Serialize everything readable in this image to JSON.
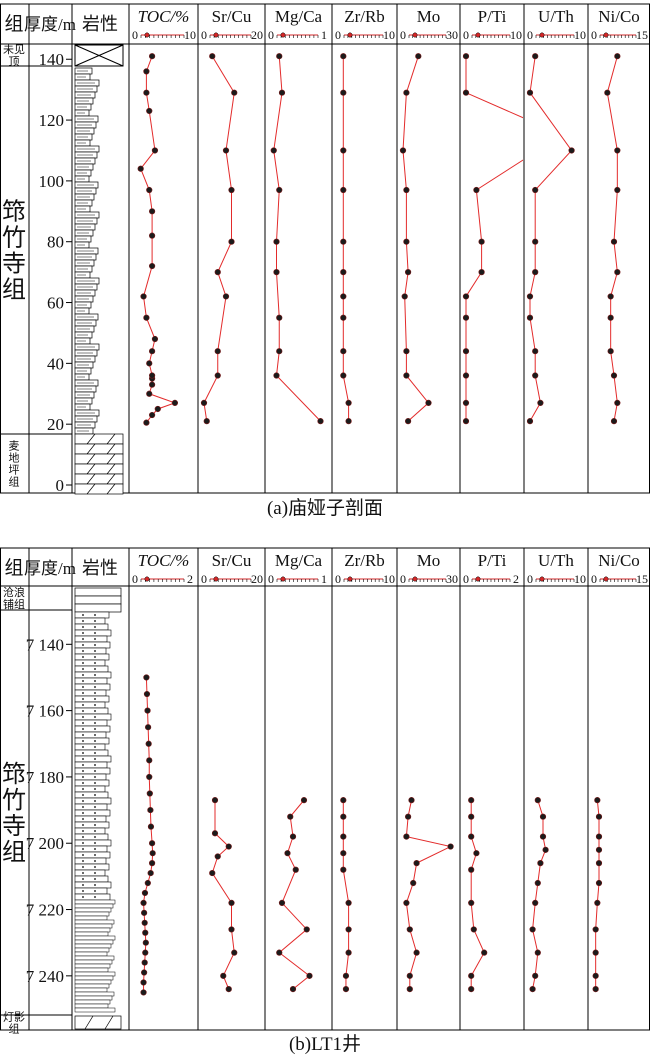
{
  "chart_data": [
    {
      "type": "line",
      "caption": "(a)庙娅子剖面",
      "col_headers": {
        "group": "组",
        "depth": "厚度/m",
        "lith": "岩性"
      },
      "depth_axis": {
        "min": 0,
        "max": 146,
        "ticks": [
          0,
          20,
          40,
          60,
          80,
          100,
          120,
          140
        ]
      },
      "formations": [
        {
          "label": "未见顶",
          "from": 143,
          "to": 146
        },
        {
          "label": "筇竹寺组",
          "from": 19,
          "to": 143
        },
        {
          "label": "麦地坪组",
          "from": 0,
          "to": 19
        }
      ],
      "tracks": [
        {
          "title": "TOC/%",
          "italic": true,
          "min": 0,
          "max": 10,
          "tick_min": "0",
          "tick_max": "10",
          "points": [
            [
              20.5,
              2
            ],
            [
              23,
              3
            ],
            [
              25,
              4
            ],
            [
              27,
              7
            ],
            [
              30,
              2.5
            ],
            [
              33,
              3
            ],
            [
              35,
              3
            ],
            [
              36,
              3
            ],
            [
              40,
              2.5
            ],
            [
              44,
              3
            ],
            [
              48,
              3.5
            ],
            [
              55,
              2
            ],
            [
              62,
              1.5
            ],
            [
              72,
              3
            ],
            [
              82,
              3
            ],
            [
              90,
              3
            ],
            [
              97,
              2.5
            ],
            [
              104,
              1
            ],
            [
              110,
              3.5
            ],
            [
              123,
              2.5
            ],
            [
              129,
              2
            ],
            [
              136,
              2
            ],
            [
              141,
              3
            ]
          ]
        },
        {
          "title": "Sr/Cu",
          "italic": false,
          "min": 0,
          "max": 20,
          "tick_min": "0",
          "tick_max": "20",
          "points": [
            [
              21,
              1
            ],
            [
              27,
              0
            ],
            [
              36,
              5
            ],
            [
              44,
              5
            ],
            [
              62,
              8
            ],
            [
              70,
              5
            ],
            [
              80,
              10
            ],
            [
              97,
              10
            ],
            [
              110,
              8
            ],
            [
              129,
              11
            ],
            [
              141,
              3
            ]
          ]
        },
        {
          "title": "Mg/Ca",
          "italic": false,
          "min": 0,
          "max": 1,
          "tick_min": "0",
          "tick_max": "1",
          "points": [
            [
              21,
              0.9
            ],
            [
              36,
              0.1
            ],
            [
              44,
              0.15
            ],
            [
              55,
              0.15
            ],
            [
              70,
              0.1
            ],
            [
              80,
              0.1
            ],
            [
              97,
              0.15
            ],
            [
              110,
              0.05
            ],
            [
              129,
              0.2
            ],
            [
              141,
              0.15
            ]
          ]
        },
        {
          "title": "Zr/Rb",
          "italic": false,
          "min": 0,
          "max": 10,
          "tick_min": "0",
          "tick_max": "10",
          "points": [
            [
              21,
              2
            ],
            [
              27,
              2
            ],
            [
              36,
              1
            ],
            [
              44,
              1
            ],
            [
              55,
              1
            ],
            [
              62,
              1
            ],
            [
              70,
              1
            ],
            [
              80,
              1
            ],
            [
              97,
              1
            ],
            [
              110,
              1
            ],
            [
              129,
              1
            ],
            [
              141,
              1
            ]
          ]
        },
        {
          "title": "Mo",
          "italic": false,
          "min": 0,
          "max": 30,
          "tick_min": "0",
          "tick_max": "30",
          "points": [
            [
              21,
              3
            ],
            [
              27,
              15
            ],
            [
              36,
              2
            ],
            [
              44,
              2
            ],
            [
              62,
              1
            ],
            [
              70,
              3
            ],
            [
              80,
              2
            ],
            [
              97,
              2
            ],
            [
              110,
              0
            ],
            [
              129,
              2
            ],
            [
              141,
              9
            ]
          ]
        },
        {
          "title": "P/Ti",
          "italic": false,
          "min": 0,
          "max": 10,
          "tick_min": "0",
          "tick_max": "10",
          "points": [
            [
              21,
              0
            ],
            [
              27,
              0
            ],
            [
              36,
              0
            ],
            [
              44,
              0
            ],
            [
              55,
              0
            ],
            [
              62,
              0
            ],
            [
              70,
              3
            ],
            [
              80,
              3
            ],
            [
              97,
              2
            ],
            [
              108,
              12
            ],
            [
              120,
              12
            ],
            [
              129,
              0
            ],
            [
              141,
              0
            ]
          ]
        },
        {
          "title": "U/Th",
          "italic": false,
          "min": 0,
          "max": 10,
          "tick_min": "0",
          "tick_max": "10",
          "points": [
            [
              21,
              0
            ],
            [
              27,
              2
            ],
            [
              36,
              1
            ],
            [
              44,
              1
            ],
            [
              55,
              0
            ],
            [
              62,
              0
            ],
            [
              70,
              1
            ],
            [
              80,
              1
            ],
            [
              97,
              1
            ],
            [
              110,
              8
            ],
            [
              129,
              0
            ],
            [
              141,
              1
            ]
          ]
        },
        {
          "title": "Ni/Co",
          "italic": false,
          "min": 0,
          "max": 15,
          "tick_min": "0",
          "tick_max": "15",
          "points": [
            [
              21,
              6
            ],
            [
              27,
              7
            ],
            [
              36,
              6
            ],
            [
              44,
              5
            ],
            [
              55,
              5
            ],
            [
              62,
              5
            ],
            [
              70,
              7
            ],
            [
              80,
              6
            ],
            [
              97,
              7
            ],
            [
              110,
              7
            ],
            [
              129,
              4
            ],
            [
              141,
              7
            ]
          ]
        }
      ]
    },
    {
      "type": "line",
      "caption": "(b)LT1井",
      "col_headers": {
        "group": "组",
        "depth": "厚度/m",
        "lith": "岩性"
      },
      "depth_axis": {
        "min": 7120,
        "max": 7250,
        "ticks": [
          7140,
          7160,
          7180,
          7200,
          7220,
          7240
        ],
        "tick_labels": [
          "7 140",
          "7 160",
          "7 180",
          "7 200",
          "7 220",
          "7 240"
        ]
      },
      "formations": [
        {
          "label": "沧浪铺组",
          "from": 7120,
          "to": 7128
        },
        {
          "label": "筇竹寺组",
          "from": 7128,
          "to": 7245
        },
        {
          "label": "灯影组",
          "from": 7245,
          "to": 7250
        }
      ],
      "tracks": [
        {
          "title": "TOC/%",
          "italic": true,
          "min": 0,
          "max": 2,
          "tick_min": "0",
          "tick_max": "2",
          "points": [
            [
              7150,
              0.4
            ],
            [
              7155,
              0.42
            ],
            [
              7160,
              0.44
            ],
            [
              7165,
              0.46
            ],
            [
              7170,
              0.48
            ],
            [
              7175,
              0.5
            ],
            [
              7180,
              0.5
            ],
            [
              7185,
              0.52
            ],
            [
              7190,
              0.54
            ],
            [
              7195,
              0.56
            ],
            [
              7200,
              0.6
            ],
            [
              7203,
              0.62
            ],
            [
              7206,
              0.6
            ],
            [
              7209,
              0.55
            ],
            [
              7212,
              0.45
            ],
            [
              7215,
              0.35
            ],
            [
              7218,
              0.3
            ],
            [
              7221,
              0.32
            ],
            [
              7224,
              0.34
            ],
            [
              7227,
              0.36
            ],
            [
              7230,
              0.38
            ],
            [
              7233,
              0.36
            ],
            [
              7236,
              0.34
            ],
            [
              7239,
              0.32
            ],
            [
              7242,
              0.3
            ],
            [
              7245,
              0.3
            ]
          ]
        },
        {
          "title": "Sr/Cu",
          "italic": false,
          "min": 0,
          "max": 20,
          "tick_min": "0",
          "tick_max": "20",
          "points": [
            [
              7187,
              4
            ],
            [
              7197,
              4
            ],
            [
              7201,
              9
            ],
            [
              7204,
              5
            ],
            [
              7209,
              3
            ],
            [
              7218,
              10
            ],
            [
              7226,
              10
            ],
            [
              7233,
              11
            ],
            [
              7240,
              7
            ],
            [
              7244,
              9
            ]
          ]
        },
        {
          "title": "Mg/Ca",
          "italic": false,
          "min": 0,
          "max": 1,
          "tick_min": "0",
          "tick_max": "1",
          "points": [
            [
              7187,
              0.6
            ],
            [
              7192,
              0.35
            ],
            [
              7198,
              0.4
            ],
            [
              7203,
              0.3
            ],
            [
              7208,
              0.45
            ],
            [
              7218,
              0.2
            ],
            [
              7226,
              0.65
            ],
            [
              7233,
              0.15
            ],
            [
              7240,
              0.7
            ],
            [
              7244,
              0.4
            ]
          ]
        },
        {
          "title": "Zr/Rb",
          "italic": false,
          "min": 0,
          "max": 10,
          "tick_min": "0",
          "tick_max": "10",
          "points": [
            [
              7187,
              1
            ],
            [
              7192,
              1
            ],
            [
              7198,
              1
            ],
            [
              7203,
              1
            ],
            [
              7208,
              1
            ],
            [
              7218,
              2
            ],
            [
              7226,
              2
            ],
            [
              7233,
              2
            ],
            [
              7240,
              1.5
            ],
            [
              7244,
              1.5
            ]
          ]
        },
        {
          "title": "Mo",
          "italic": false,
          "min": 0,
          "max": 30,
          "tick_min": "0",
          "tick_max": "30",
          "points": [
            [
              7187,
              5
            ],
            [
              7192,
              3
            ],
            [
              7198,
              2
            ],
            [
              7201,
              28
            ],
            [
              7206,
              8
            ],
            [
              7212,
              6
            ],
            [
              7218,
              2
            ],
            [
              7226,
              4
            ],
            [
              7233,
              8
            ],
            [
              7240,
              4
            ],
            [
              7244,
              4
            ]
          ]
        },
        {
          "title": "P/Ti",
          "italic": false,
          "min": 0,
          "max": 2,
          "tick_min": "0",
          "tick_max": "2",
          "points": [
            [
              7187,
              0.2
            ],
            [
              7192,
              0.2
            ],
            [
              7198,
              0.2
            ],
            [
              7203,
              0.4
            ],
            [
              7208,
              0.2
            ],
            [
              7218,
              0.2
            ],
            [
              7226,
              0.3
            ],
            [
              7233,
              0.7
            ],
            [
              7240,
              0.2
            ],
            [
              7244,
              0.2
            ]
          ]
        },
        {
          "title": "U/Th",
          "italic": false,
          "min": 0,
          "max": 10,
          "tick_min": "0",
          "tick_max": "10",
          "points": [
            [
              7187,
              1.5
            ],
            [
              7192,
              2.5
            ],
            [
              7198,
              2.5
            ],
            [
              7202,
              3
            ],
            [
              7206,
              2
            ],
            [
              7212,
              1.5
            ],
            [
              7218,
              1
            ],
            [
              7226,
              0.5
            ],
            [
              7233,
              1.5
            ],
            [
              7240,
              1
            ],
            [
              7244,
              0.5
            ]
          ]
        },
        {
          "title": "Ni/Co",
          "italic": false,
          "min": 0,
          "max": 15,
          "tick_min": "0",
          "tick_max": "15",
          "points": [
            [
              7187,
              1
            ],
            [
              7192,
              1.5
            ],
            [
              7198,
              1.5
            ],
            [
              7202,
              1.5
            ],
            [
              7206,
              1.5
            ],
            [
              7212,
              1.5
            ],
            [
              7218,
              1
            ],
            [
              7226,
              0.5
            ],
            [
              7233,
              0.5
            ],
            [
              7240,
              0.5
            ],
            [
              7244,
              0.5
            ]
          ]
        }
      ]
    }
  ]
}
